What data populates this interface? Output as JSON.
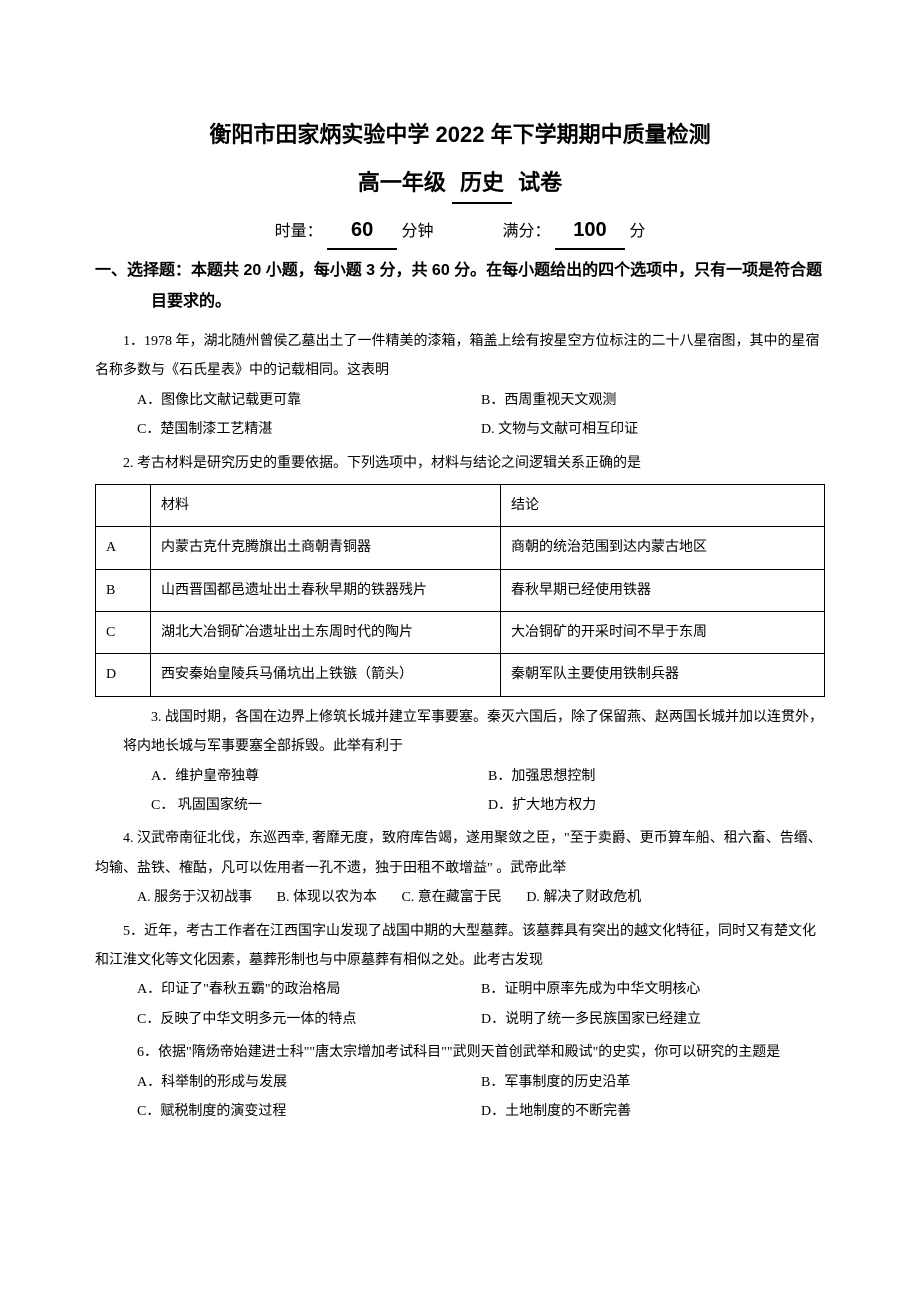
{
  "header": {
    "title_main": "衡阳市田家炳实验中学 2022 年下学期期中质量检测",
    "grade": "高一年级",
    "subject": "历史",
    "paper_label": "试卷",
    "time_label": "时量：",
    "time_value": "60",
    "time_unit": "分钟",
    "score_label": "满分：",
    "score_value": "100",
    "score_unit": "分"
  },
  "section1": {
    "header": "一、选择题：本题共 20 小题，每小题 3 分，共 60 分。在每小题给出的四个选项中，只有一项是符合题目要求的。"
  },
  "q1": {
    "text": "1．1978 年，湖北随州曾侯乙墓出土了一件精美的漆箱，箱盖上绘有按星空方位标注的二十八星宿图，其中的星宿名称多数与《石氏星表》中的记载相同。这表明",
    "a": "A．图像比文献记载更可靠",
    "b": "B．西周重视天文观测",
    "c": "C．楚国制漆工艺精湛",
    "d": "D. 文物与文献可相互印证"
  },
  "q2": {
    "text": "2. 考古材料是研究历史的重要依据。下列选项中，材料与结论之间逻辑关系正确的是",
    "table": {
      "columns": [
        "",
        "材料",
        "结论"
      ],
      "rows": [
        [
          "A",
          "内蒙古克什克腾旗出土商朝青铜器",
          "商朝的统治范围到达内蒙古地区"
        ],
        [
          "B",
          "山西晋国都邑遗址出土春秋早期的铁器残片",
          "春秋早期已经使用铁器"
        ],
        [
          "C",
          "湖北大冶铜矿冶遗址出土东周时代的陶片",
          "大冶铜矿的开采时间不早于东周"
        ],
        [
          "D",
          "西安秦始皇陵兵马俑坑出上铁镞（箭头）",
          "秦朝军队主要使用铁制兵器"
        ]
      ]
    }
  },
  "q3": {
    "text": "3. 战国时期，各国在边界上修筑长城并建立军事要塞。秦灭六国后，除了保留燕、赵两国长城并加以连贯外，将内地长城与军事要塞全部拆毁。此举有利于",
    "a": "A．维护皇帝独尊",
    "b": "B．加强思想控制",
    "c": "C． 巩固国家统一",
    "d": "D．扩大地方权力"
  },
  "q4": {
    "text": "4. 汉武帝南征北伐，东巡西幸, 奢靡无度，致府库告竭，遂用聚敛之臣，\"至于卖爵、更币算车船、租六畜、告缗、均输、盐铁、榷酤，凡可以佐用者一孔不遗，独于田租不敢增益\" 。武帝此举",
    "a": "A. 服务于汉初战事",
    "b": "B. 体现以农为本",
    "c": "C. 意在藏富于民",
    "d": "D. 解决了财政危机"
  },
  "q5": {
    "text": "5．近年，考古工作者在江西国字山发现了战国中期的大型墓葬。该墓葬具有突出的越文化特征，同时又有楚文化和江淮文化等文化因素，墓葬形制也与中原墓葬有相似之处。此考古发现",
    "a": "A．印证了\"春秋五霸\"的政治格局",
    "b": "B．证明中原率先成为中华文明核心",
    "c": "C．反映了中华文明多元一体的特点",
    "d": "D．说明了统一多民族国家已经建立"
  },
  "q6": {
    "text": "6．依据\"隋炀帝始建进士科\"\"唐太宗增加考试科目\"\"武则天首创武举和殿试\"的史实，你可以研究的主题是",
    "a": "A．科举制的形成与发展",
    "b": "B．军事制度的历史沿革",
    "c": "C．赋税制度的演变过程",
    "d": "D．土地制度的不断完善"
  }
}
